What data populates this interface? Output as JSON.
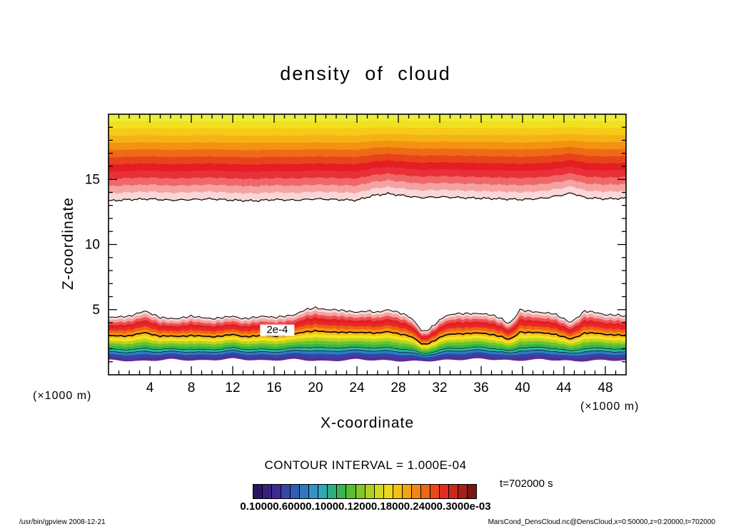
{
  "labels": {
    "unit": "(×1000 m)",
    "contour_interval": "CONTOUR INTERVAL = 1.000E-04",
    "time": "t=702000 s",
    "colorbar_ticks": "0.10000.60000.10000.12000.18000.24000.3000e-03"
  },
  "footer": {
    "left": "/usr/bin/gpview  2008-12-21",
    "right": "MarsCond_DensCloud.nc@DensCloud,x=0:50000,z=0:20000,t=702000"
  },
  "chart_data": {
    "type": "heatmap",
    "title": "density of cloud",
    "xlabel": "X-coordinate",
    "ylabel": "Z-coordinate",
    "axis_units": "×1000 m",
    "x_range": [
      0,
      50
    ],
    "z_range": [
      0,
      20
    ],
    "x_ticks": [
      4,
      8,
      12,
      16,
      20,
      24,
      28,
      32,
      36,
      40,
      44,
      48
    ],
    "z_ticks": [
      5,
      10,
      15
    ],
    "contour_interval": "1.000E-04",
    "labeled_contour": "2e-4",
    "time_seconds": 702000,
    "upper_band": {
      "description": "upper cloud layer, filled contours from plot top (z=20) fading to white near z=13.5",
      "bottom_edge": [
        [
          0,
          13.35
        ],
        [
          2,
          13.45
        ],
        [
          4,
          13.5
        ],
        [
          6,
          13.4
        ],
        [
          8,
          13.45
        ],
        [
          10,
          13.5
        ],
        [
          12,
          13.4
        ],
        [
          14,
          13.35
        ],
        [
          16,
          13.45
        ],
        [
          18,
          13.4
        ],
        [
          20,
          13.5
        ],
        [
          22,
          13.45
        ],
        [
          24,
          13.4
        ],
        [
          25.5,
          13.75
        ],
        [
          27,
          13.9
        ],
        [
          28.5,
          13.75
        ],
        [
          30,
          13.6
        ],
        [
          32,
          13.65
        ],
        [
          34,
          13.6
        ],
        [
          36,
          13.55
        ],
        [
          38,
          13.5
        ],
        [
          40,
          13.45
        ],
        [
          42,
          13.55
        ],
        [
          43.5,
          13.75
        ],
        [
          44.8,
          13.95
        ],
        [
          46,
          13.6
        ],
        [
          48,
          13.5
        ],
        [
          50,
          13.55
        ]
      ],
      "colors_top_to_bottom": [
        "#eded3c",
        "#f2e01e",
        "#f5cb18",
        "#f6b214",
        "#f49212",
        "#ee6b15",
        "#e9431c",
        "#e61d24",
        "#e93038",
        "#ef6868",
        "#f5a2a2",
        "#fad6d6"
      ]
    },
    "lower_band": {
      "description": "lower cloud layer, filled contours from wavy top near z=5 down to purple base near z=1; labeled 2e-4 contour runs near z=3",
      "top_edge": [
        [
          0,
          4.4
        ],
        [
          2,
          4.5
        ],
        [
          3.5,
          4.9
        ],
        [
          5,
          4.4
        ],
        [
          6.5,
          4.3
        ],
        [
          8,
          4.5
        ],
        [
          10,
          4.3
        ],
        [
          12,
          4.5
        ],
        [
          13,
          4.3
        ],
        [
          14,
          4.4
        ],
        [
          15,
          4.5
        ],
        [
          16,
          4.4
        ],
        [
          17,
          4.5
        ],
        [
          18,
          4.6
        ],
        [
          19,
          5.0
        ],
        [
          20,
          5.15
        ],
        [
          21,
          5.0
        ],
        [
          22,
          5.0
        ],
        [
          23,
          4.9
        ],
        [
          24,
          4.8
        ],
        [
          25,
          4.9
        ],
        [
          26,
          4.8
        ],
        [
          27,
          5.0
        ],
        [
          28,
          4.8
        ],
        [
          29,
          4.5
        ],
        [
          29.8,
          3.9
        ],
        [
          30.3,
          3.3
        ],
        [
          31,
          3.5
        ],
        [
          31.7,
          4.0
        ],
        [
          32.5,
          4.5
        ],
        [
          33.5,
          4.7
        ],
        [
          35,
          4.7
        ],
        [
          36,
          4.7
        ],
        [
          37,
          4.6
        ],
        [
          38,
          4.3
        ],
        [
          38.6,
          3.9
        ],
        [
          39.2,
          4.3
        ],
        [
          39.7,
          5.0
        ],
        [
          40.5,
          4.9
        ],
        [
          41.5,
          4.8
        ],
        [
          43,
          4.7
        ],
        [
          44,
          4.3
        ],
        [
          44.6,
          4.0
        ],
        [
          45.3,
          4.4
        ],
        [
          46,
          4.9
        ],
        [
          47,
          4.8
        ],
        [
          48,
          4.6
        ],
        [
          49,
          4.6
        ],
        [
          50,
          4.5
        ]
      ],
      "bottom_edge": [
        [
          0,
          1.15
        ],
        [
          3,
          1.05
        ],
        [
          6,
          1.2
        ],
        [
          9,
          1.1
        ],
        [
          12,
          1.25
        ],
        [
          15,
          1.1
        ],
        [
          18,
          1.2
        ],
        [
          21,
          1.05
        ],
        [
          24,
          1.2
        ],
        [
          27,
          1.1
        ],
        [
          30,
          1.05
        ],
        [
          33,
          1.15
        ],
        [
          36,
          1.25
        ],
        [
          39,
          1.1
        ],
        [
          42,
          1.2
        ],
        [
          45,
          1.05
        ],
        [
          48,
          1.15
        ],
        [
          50,
          1.1
        ]
      ],
      "colors_top_to_bottom": [
        "#fad6d6",
        "#f5a2a2",
        "#ee5050",
        "#e61d24",
        "#e62a24",
        "#ee6015",
        "#f49212",
        "#f6be16",
        "#f3e41e",
        "#b5d521",
        "#6ec32b",
        "#34b64e",
        "#2cb2a6",
        "#2f7cc2",
        "#2c4aa6",
        "#5a2d96"
      ]
    },
    "colorbar": {
      "orientation": "horizontal",
      "colors": [
        "#2a1660",
        "#38207c",
        "#3f2a94",
        "#3746a6",
        "#2f5eb4",
        "#2f78c0",
        "#3293ca",
        "#2da8b4",
        "#2fae84",
        "#38b454",
        "#58bd30",
        "#84c628",
        "#aed122",
        "#d2d91e",
        "#ecd71a",
        "#f4c116",
        "#f4a413",
        "#f18712",
        "#ed6715",
        "#e8481c",
        "#e42a24",
        "#cc2820",
        "#a42018",
        "#781810"
      ]
    }
  }
}
